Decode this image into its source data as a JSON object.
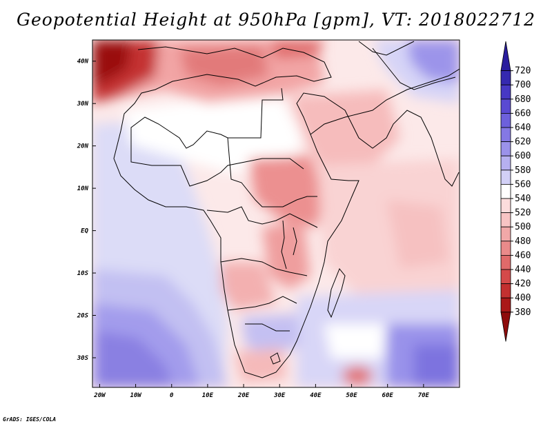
{
  "title": "Geopotential Height at 950hPa [gpm], VT: 2018022712",
  "footer": "GrADS: IGES/COLA",
  "map": {
    "lon_range": [
      -22,
      80
    ],
    "lat_range": [
      -37,
      45
    ],
    "x_ticks": [
      {
        "lon": -20,
        "label": "20W"
      },
      {
        "lon": -10,
        "label": "10W"
      },
      {
        "lon": 0,
        "label": "0"
      },
      {
        "lon": 10,
        "label": "10E"
      },
      {
        "lon": 20,
        "label": "20E"
      },
      {
        "lon": 30,
        "label": "30E"
      },
      {
        "lon": 40,
        "label": "40E"
      },
      {
        "lon": 50,
        "label": "50E"
      },
      {
        "lon": 60,
        "label": "60E"
      },
      {
        "lon": 70,
        "label": "70E"
      }
    ],
    "y_ticks": [
      {
        "lat": 40,
        "label": "40N"
      },
      {
        "lat": 30,
        "label": "30N"
      },
      {
        "lat": 20,
        "label": "20N"
      },
      {
        "lat": 10,
        "label": "10N"
      },
      {
        "lat": 0,
        "label": "EQ"
      },
      {
        "lat": -10,
        "label": "10S"
      },
      {
        "lat": -20,
        "label": "20S"
      },
      {
        "lat": -30,
        "label": "30S"
      }
    ]
  },
  "colorbar": {
    "levels": [
      "720",
      "700",
      "680",
      "660",
      "640",
      "620",
      "600",
      "580",
      "560",
      "540",
      "520",
      "500",
      "480",
      "460",
      "440",
      "420",
      "400",
      "380"
    ],
    "colors": [
      "#2a1d9e",
      "#3529b0",
      "#4738c4",
      "#5a4ad2",
      "#6d60dc",
      "#8478e4",
      "#9b92ea",
      "#b6b0f0",
      "#d2d0f6",
      "#ffffff",
      "#fcdcdc",
      "#f8c4c4",
      "#f1a8a8",
      "#ea8a8a",
      "#e06a6a",
      "#d44a4a",
      "#c33030",
      "#aa1818",
      "#8e0c0c"
    ]
  }
}
